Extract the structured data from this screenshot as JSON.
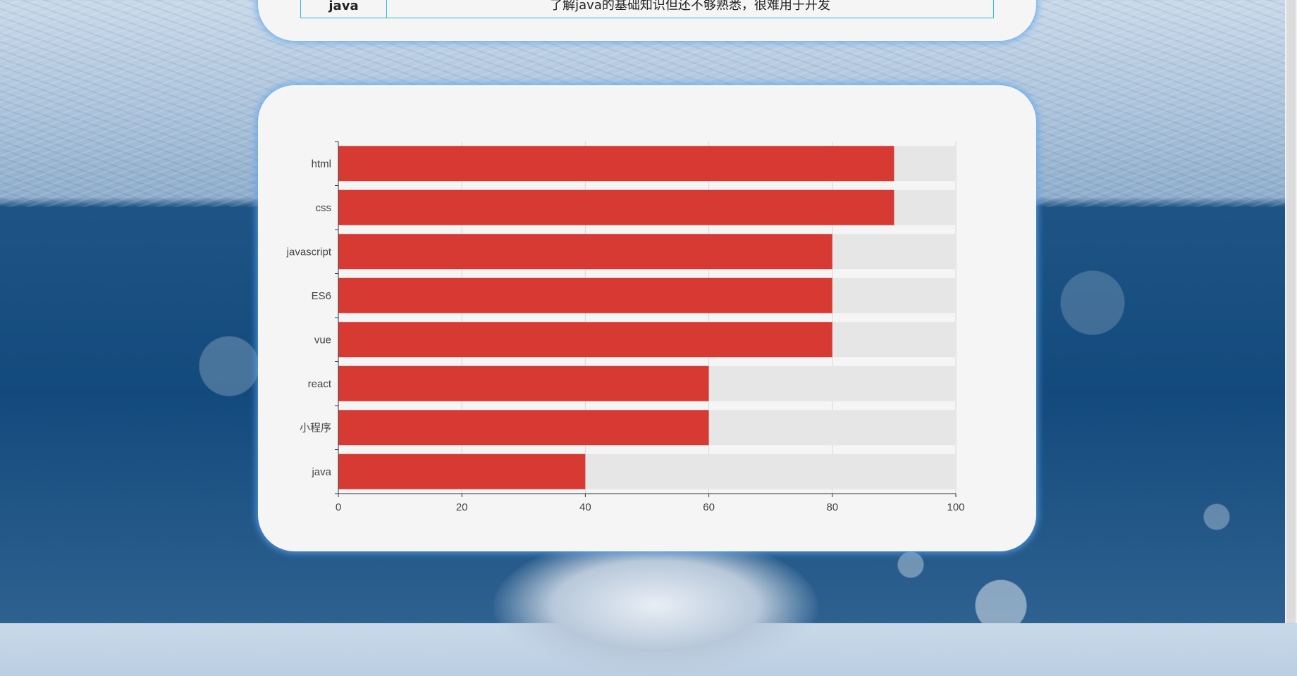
{
  "table_row": {
    "name": "java",
    "description": "了解java的基础知识但还不够熟悉，很难用于开发"
  },
  "colors": {
    "bar": "#d63a33",
    "bar_background": "#e6e6e6",
    "card": "#f5f5f5",
    "card_glow": "#5aa5f0",
    "table_border": "#2bbcc8"
  },
  "chart_data": {
    "type": "bar",
    "orientation": "horizontal",
    "categories": [
      "html",
      "css",
      "javascript",
      "ES6",
      "vue",
      "react",
      "小程序",
      "java"
    ],
    "values": [
      90,
      90,
      80,
      80,
      80,
      60,
      60,
      40
    ],
    "background_values": [
      100,
      100,
      100,
      100,
      100,
      100,
      100,
      100
    ],
    "xlim": [
      0,
      100
    ],
    "xticks": [
      0,
      20,
      40,
      60,
      80,
      100
    ],
    "grid": "vertical",
    "title": "",
    "xlabel": "",
    "ylabel": ""
  }
}
